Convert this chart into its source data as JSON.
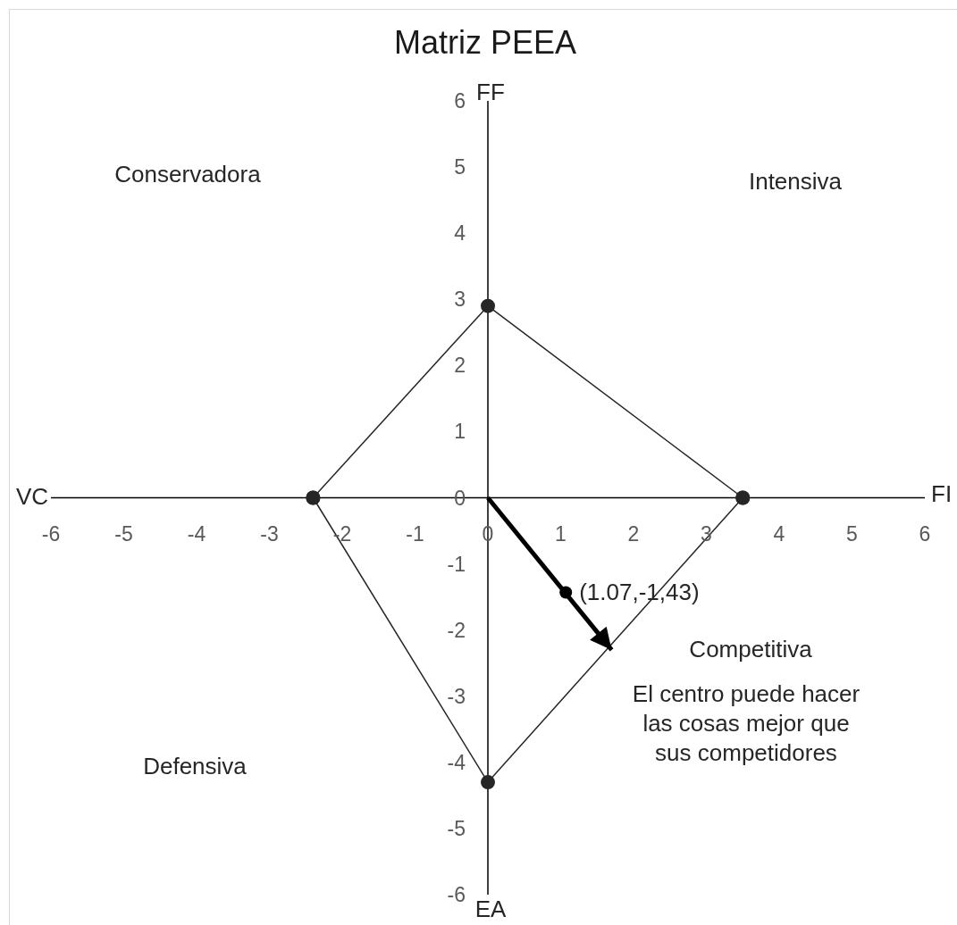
{
  "chart_data": {
    "type": "scatter",
    "title": "Matriz PEEA",
    "xlim": [
      -6,
      6
    ],
    "xticks": [
      -6,
      -5,
      -4,
      -3,
      -2,
      -1,
      0,
      1,
      2,
      3,
      4,
      5,
      6
    ],
    "ylim": [
      -6,
      6
    ],
    "yticks": [
      -6,
      -5,
      -4,
      -3,
      -2,
      -1,
      0,
      1,
      2,
      3,
      4,
      5,
      6
    ],
    "series": [
      {
        "type": "line",
        "x": [
          -2.4,
          0,
          3.5
        ],
        "values": [
          0,
          2.9,
          0
        ],
        "color": "#262626",
        "marker": "circle"
      },
      {
        "type": "line",
        "x": [
          -2.4,
          0,
          3.5
        ],
        "values": [
          0,
          -4.3,
          0
        ],
        "color": "#262626",
        "marker": "circle"
      },
      {
        "type": "line",
        "x": [
          0,
          1.7
        ],
        "values": [
          0,
          -2.3
        ],
        "color": "#000000",
        "marker": "none"
      },
      {
        "x": [
          1.07
        ],
        "values": [
          -1.43
        ],
        "color": "#000000",
        "marker": "circle",
        "value_labels": [
          "(1.07,-1,43)"
        ]
      }
    ],
    "annotations": [
      "FF",
      "FI",
      "EA",
      "VC",
      "Conservadora",
      "Intensiva",
      "Defensiva",
      "Competitiva",
      "El centro puede hacer las cosas mejor que sus competidores"
    ]
  }
}
